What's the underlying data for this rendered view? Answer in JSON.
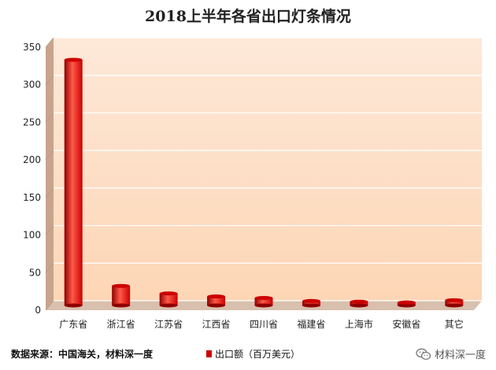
{
  "chart_data": {
    "type": "bar",
    "title": "2018上半年各省出口灯条情况",
    "categories": [
      "广东省",
      "浙江省",
      "江苏省",
      "江西省",
      "四川省",
      "福建省",
      "上海市",
      "安徽省",
      "其它"
    ],
    "series": [
      {
        "name": "出口额（百万美元）",
        "values": [
          327,
          26,
          16,
          12,
          10,
          6,
          5,
          4,
          7
        ]
      }
    ],
    "xlabel": "",
    "ylabel": "",
    "ylim": [
      0,
      350
    ],
    "yticks": [
      0,
      50,
      100,
      150,
      200,
      250,
      300,
      350
    ],
    "grid": true,
    "legend_position": "bottom",
    "colors": {
      "bar": "#cc0000",
      "bar_dark": "#8f0000",
      "bar_light": "#ff5a4a",
      "plot_bg_top": "#fde8d8",
      "plot_bg_bottom": "#fdd6b5",
      "wall_left": "#c9a48c",
      "floor": "#d9bfae"
    }
  },
  "footer": {
    "source": "数据来源：中国海关，材料深一度",
    "watermark": "材料深一度"
  }
}
